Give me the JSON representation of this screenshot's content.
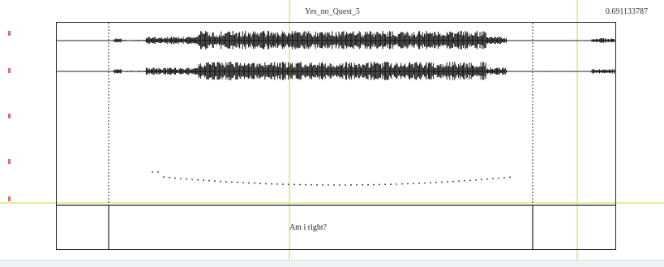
{
  "sound": {
    "title": "Yes_no_Quest_5",
    "time_readout": "0.691133787"
  },
  "interval_tier": {
    "label": "Am i right?"
  },
  "colors": {
    "cursor": "#e7ec94",
    "waveform": "#111111",
    "pitch": "#222222",
    "frame": "#222222",
    "marker": "#e06b6b"
  }
}
